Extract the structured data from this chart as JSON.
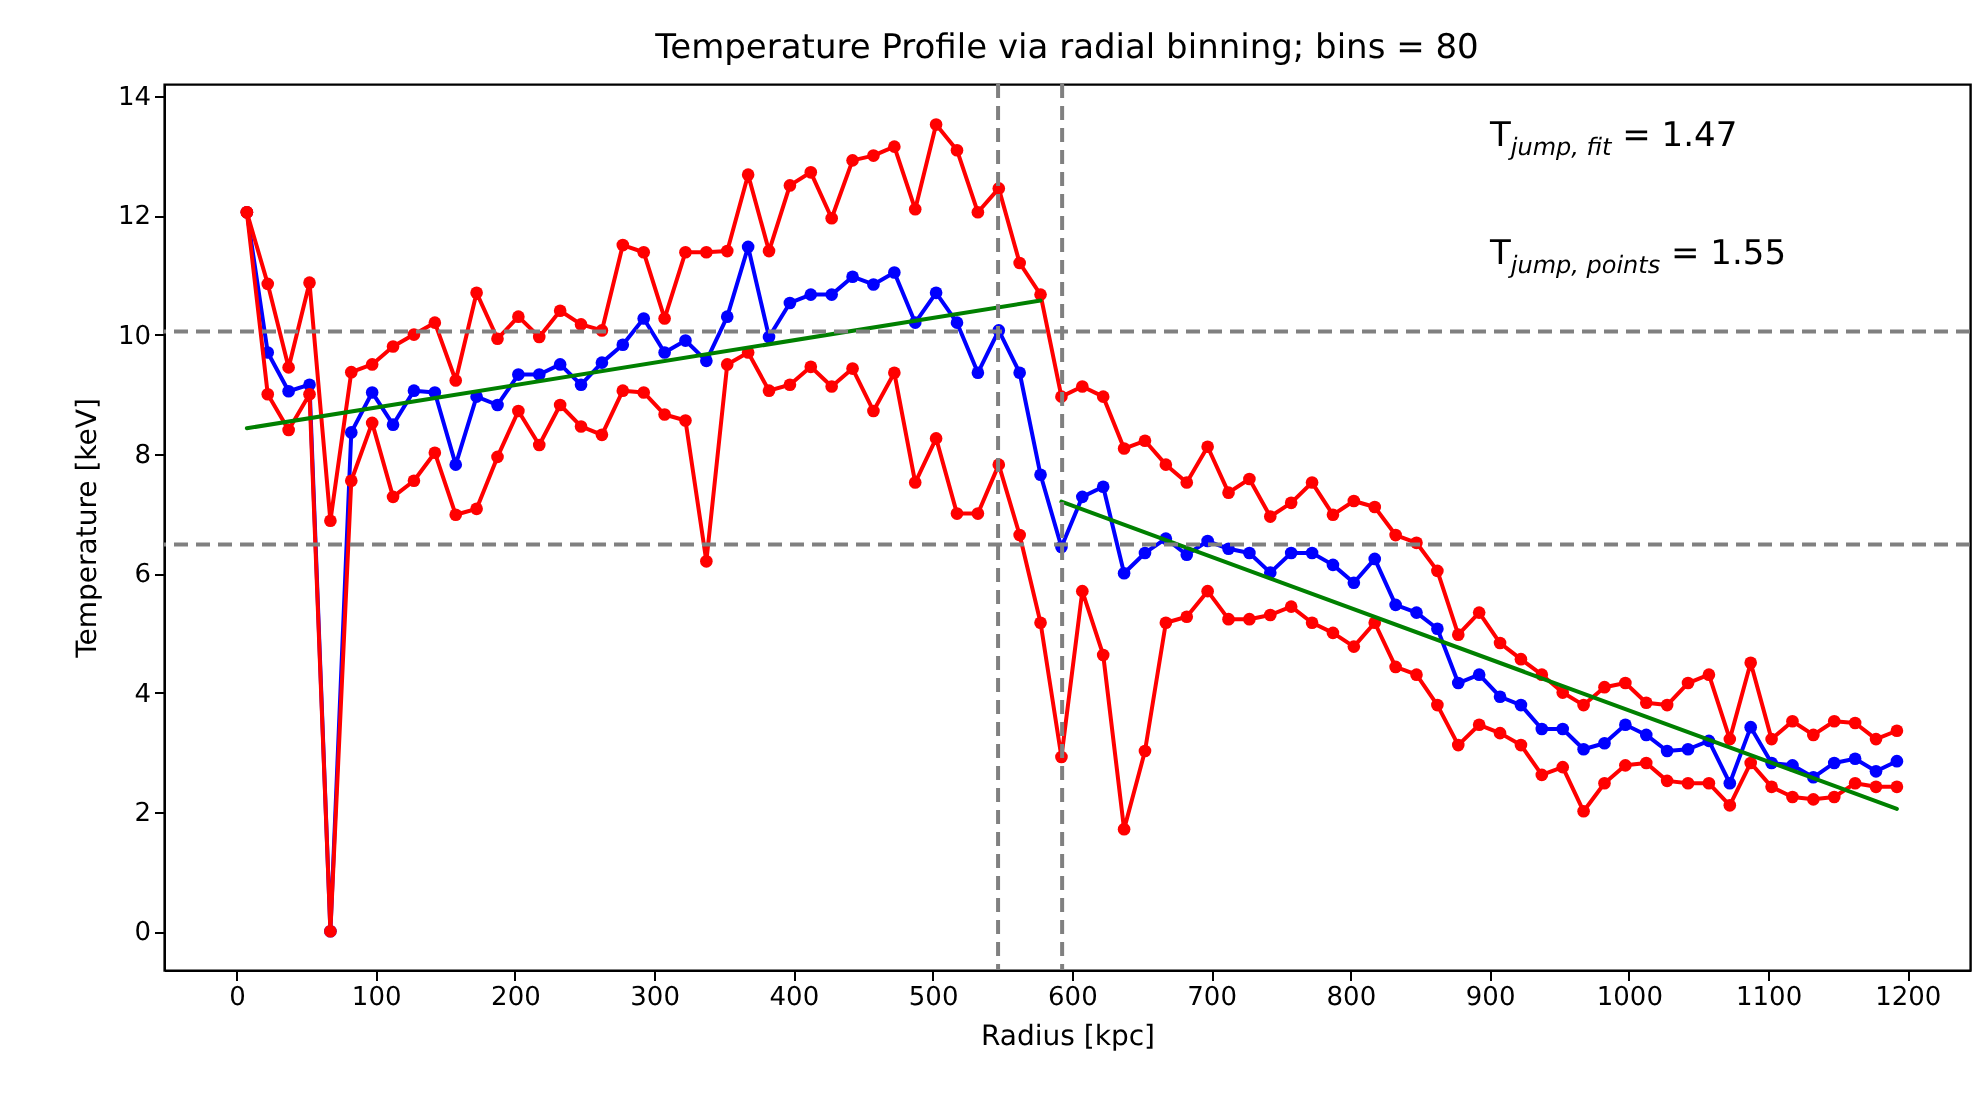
{
  "chart_data": {
    "type": "line",
    "title": "Temperature Profile via radial binning; bins = 80",
    "xlabel": "Radius [kpc]",
    "ylabel": "Temperature [keV]",
    "x": [
      7.5,
      22.5,
      37.5,
      52.5,
      67.5,
      82.5,
      97.5,
      112.5,
      127.5,
      142.5,
      157.5,
      172.5,
      187.5,
      202.5,
      217.5,
      232.5,
      247.5,
      262.5,
      277.5,
      292.5,
      307.5,
      322.5,
      337.5,
      352.5,
      367.5,
      382.5,
      397.5,
      412.5,
      427.5,
      442.5,
      457.5,
      472.5,
      487.5,
      502.5,
      517.5,
      532.5,
      547.5,
      562.5,
      577.5,
      592.5,
      607.5,
      622.5,
      637.5,
      652.5,
      667.5,
      682.5,
      697.5,
      712.5,
      727.5,
      742.5,
      757.5,
      772.5,
      787.5,
      802.5,
      817.5,
      832.5,
      847.5,
      862.5,
      877.5,
      892.5,
      907.5,
      922.5,
      937.5,
      952.5,
      967.5,
      982.5,
      997.5,
      1012.5,
      1027.5,
      1042.5,
      1057.5,
      1072.5,
      1087.5,
      1102.5,
      1117.5,
      1132.5,
      1147.5,
      1162.5,
      1177.5,
      1192.5
    ],
    "series": [
      {
        "color": "#0000ff",
        "marker": "circle",
        "values": [
          12.05,
          9.7,
          9.05,
          9.16,
          0.0,
          8.36,
          9.03,
          8.49,
          9.06,
          9.03,
          7.82,
          8.96,
          8.82,
          9.33,
          9.33,
          9.5,
          9.16,
          9.53,
          9.83,
          10.27,
          9.7,
          9.9,
          9.56,
          10.3,
          11.47,
          9.96,
          10.53,
          10.67,
          10.67,
          10.97,
          10.84,
          11.04,
          10.2,
          10.7,
          10.2,
          9.36,
          10.07,
          9.36,
          7.65,
          6.44,
          7.28,
          7.45,
          6.0,
          6.34,
          6.58,
          6.31,
          6.54,
          6.41,
          6.34,
          6.01,
          6.34,
          6.34,
          6.14,
          5.84,
          6.24,
          5.47,
          5.34,
          5.07,
          4.16,
          4.3,
          3.93,
          3.79,
          3.39,
          3.39,
          3.05,
          3.15,
          3.46,
          3.29,
          3.02,
          3.05,
          3.19,
          2.48,
          3.42,
          2.82,
          2.78,
          2.58,
          2.82,
          2.89,
          2.68,
          2.85
        ]
      },
      {
        "color": "#ff0000",
        "marker": "circle",
        "values": [
          12.05,
          10.85,
          9.45,
          10.87,
          6.88,
          9.37,
          9.5,
          9.8,
          10.0,
          10.2,
          9.23,
          10.7,
          9.93,
          10.3,
          9.96,
          10.4,
          10.17,
          10.07,
          11.5,
          11.38,
          10.27,
          11.38,
          11.38,
          11.4,
          12.68,
          11.4,
          12.5,
          12.72,
          11.95,
          12.92,
          13.0,
          13.15,
          12.1,
          13.52,
          13.09,
          12.05,
          12.45,
          11.2,
          10.67,
          8.96,
          9.13,
          8.96,
          8.09,
          8.22,
          7.82,
          7.52,
          8.12,
          7.35,
          7.58,
          6.95,
          7.18,
          7.52,
          6.98,
          7.21,
          7.11,
          6.64,
          6.51,
          6.04,
          4.97,
          5.34,
          4.83,
          4.56,
          4.3,
          4.0,
          3.79,
          4.09,
          4.16,
          3.83,
          3.79,
          4.16,
          4.3,
          3.22,
          4.5,
          3.22,
          3.52,
          3.29,
          3.52,
          3.49,
          3.22,
          3.36
        ]
      },
      {
        "color": "#ff0000",
        "marker": "circle",
        "values": [
          12.05,
          9.0,
          8.4,
          9.0,
          0.0,
          7.55,
          8.52,
          7.28,
          7.55,
          8.02,
          6.98,
          7.08,
          7.95,
          8.72,
          8.15,
          8.82,
          8.46,
          8.32,
          9.06,
          9.03,
          8.66,
          8.56,
          6.2,
          9.5,
          9.7,
          9.06,
          9.16,
          9.46,
          9.13,
          9.43,
          8.72,
          9.36,
          7.52,
          8.26,
          7.0,
          7.0,
          7.82,
          6.64,
          5.17,
          2.92,
          5.7,
          4.63,
          1.71,
          3.02,
          5.17,
          5.27,
          5.7,
          5.23,
          5.23,
          5.3,
          5.44,
          5.17,
          5.0,
          4.77,
          5.17,
          4.43,
          4.3,
          3.79,
          3.12,
          3.46,
          3.32,
          3.12,
          2.62,
          2.75,
          2.01,
          2.48,
          2.78,
          2.82,
          2.52,
          2.48,
          2.48,
          2.11,
          2.82,
          2.42,
          2.25,
          2.21,
          2.25,
          2.48,
          2.42,
          2.42
        ]
      },
      {
        "color": "#008000",
        "marker": "none",
        "x": [
          7.5,
          577.5
        ],
        "values": [
          8.43,
          10.57
        ]
      },
      {
        "color": "#008000",
        "marker": "none",
        "x": [
          592.5,
          1192.5
        ],
        "values": [
          7.2,
          2.05
        ]
      }
    ],
    "xlim": [
      -52,
      1245
    ],
    "ylim": [
      -0.65,
      14.2
    ],
    "xticks": [
      0,
      100,
      200,
      300,
      400,
      500,
      600,
      700,
      800,
      900,
      1000,
      1100,
      1200
    ],
    "yticks": [
      0,
      2,
      4,
      6,
      8,
      10,
      12,
      14
    ],
    "ref_lines": [
      {
        "axis": "x",
        "value": 547,
        "color": "#808080",
        "line_style": "dashed"
      },
      {
        "axis": "x",
        "value": 593,
        "color": "#808080",
        "line_style": "dashed"
      },
      {
        "axis": "y",
        "value": 10.05,
        "color": "#808080",
        "line_style": "dashed"
      },
      {
        "axis": "y",
        "value": 6.48,
        "color": "#808080",
        "line_style": "dashed"
      }
    ],
    "annotations": [
      "T$_{jump, fit}$ = 1.47",
      "T$_{jump, points}$ = 1.55"
    ],
    "grid": false,
    "line_style": "solid"
  }
}
